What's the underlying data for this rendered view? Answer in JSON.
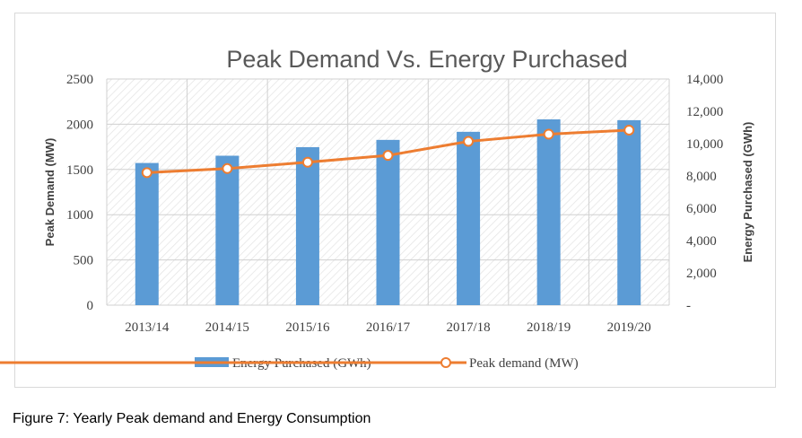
{
  "caption": "Figure 7: Yearly Peak demand and Energy Consumption",
  "chart_data": {
    "type": "bar",
    "title": "Peak Demand Vs. Energy Purchased",
    "categories": [
      "2013/14",
      "2014/15",
      "2015/16",
      "2016/17",
      "2017/18",
      "2018/19",
      "2019/20"
    ],
    "ylabel_left": "Peak Demand (MW)",
    "ylabel_right": "Energy Purchased (GWh)",
    "left_ticks": [
      "0",
      "500",
      "1000",
      "1500",
      "2000",
      "2500"
    ],
    "right_ticks": [
      "-",
      "2,000",
      "4,000",
      "6,000",
      "8,000",
      "10,000",
      "12,000",
      "14,000"
    ],
    "ylim_left": [
      0,
      2500
    ],
    "ylim_right": [
      0,
      14000
    ],
    "series": [
      {
        "name": "Energy Purchased (GWh)",
        "type": "bar",
        "axis": "right",
        "color": "#5b9bd5",
        "values": [
          8800,
          9250,
          9780,
          10230,
          10730,
          11500,
          11450
        ]
      },
      {
        "name": "Peak demand (MW)",
        "type": "line",
        "axis": "left",
        "color": "#ed7d31",
        "values": [
          1465,
          1510,
          1580,
          1655,
          1810,
          1890,
          1935
        ]
      }
    ],
    "grid": true,
    "legend": "bottom"
  }
}
